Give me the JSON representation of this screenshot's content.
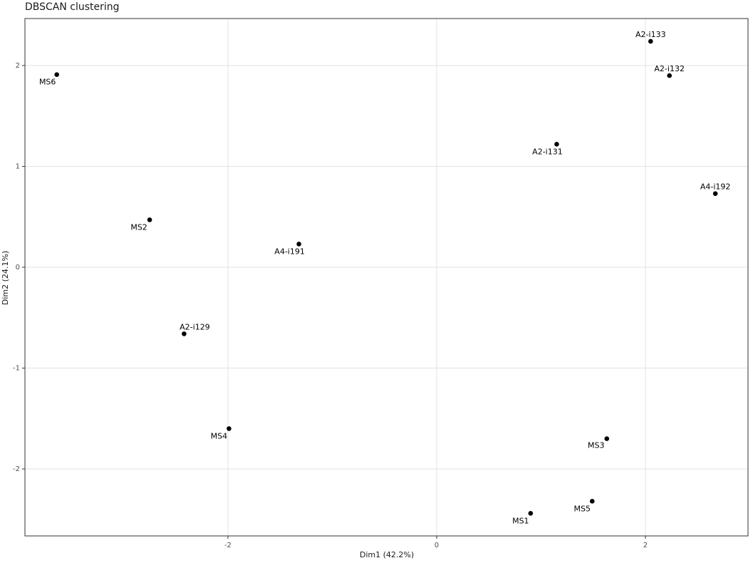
{
  "chart_data": {
    "type": "scatter",
    "title": "DBSCAN clustering",
    "x_label": "Dim1 (42.2%)",
    "y_label": "Dim2 (24.1%)",
    "series": [
      {
        "name": "points",
        "color": "#000000",
        "labels": [
          "MS6",
          "A2-i133",
          "A2-i132",
          "A2-i131",
          "A4-i192",
          "MS2",
          "A4-i191",
          "A2-i129",
          "MS4",
          "MS3",
          "MS5",
          "MS1"
        ],
        "x": [
          -3.64,
          2.05,
          2.23,
          1.15,
          2.67,
          -2.75,
          -1.32,
          -2.42,
          -1.99,
          1.63,
          1.49,
          0.9
        ],
        "values": [
          1.91,
          2.24,
          1.9,
          1.22,
          0.73,
          0.47,
          0.23,
          -0.66,
          -1.6,
          -1.7,
          -2.32,
          -2.44
        ]
      }
    ],
    "xlim": [
      -3.945,
      2.983
    ],
    "ylim": [
      -2.664,
      2.466
    ],
    "xticks": [
      -2,
      0,
      2
    ],
    "yticks": [
      -2,
      -1,
      0,
      1,
      2
    ],
    "grid": true
  }
}
